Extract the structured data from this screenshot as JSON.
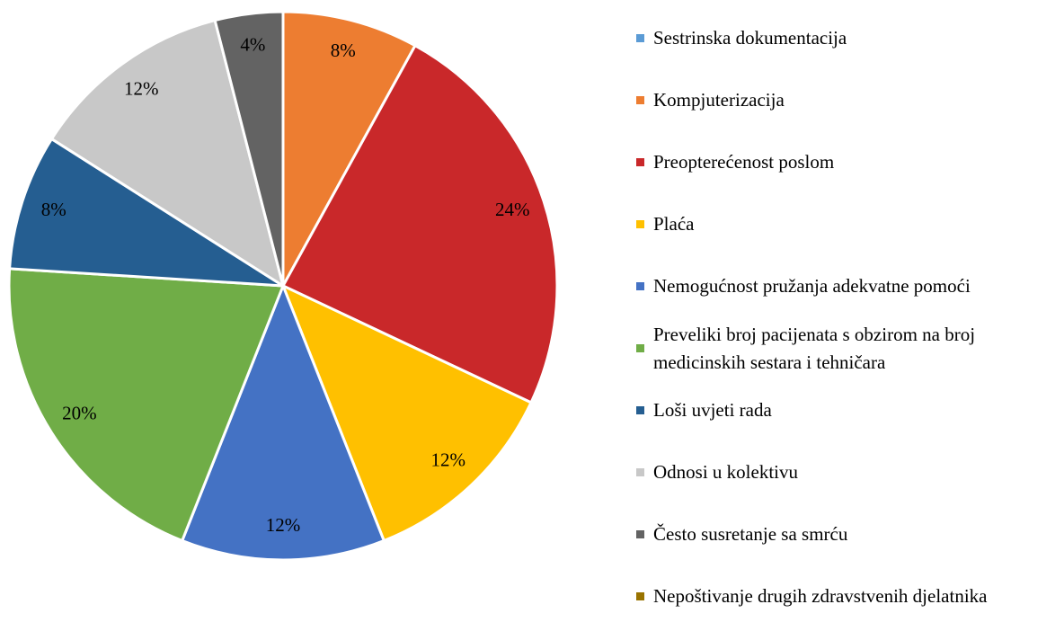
{
  "chart_data": {
    "type": "pie",
    "categories": [
      "Sestrinska dokumentacija",
      "Kompjuterizacija",
      "Preopterećenost poslom",
      "Plaća",
      "Nemogućnost pružanja adekvatne pomoći",
      "Preveliki broj pacijenata s obzirom na broj medicinskih sestara i tehničara",
      "Loši uvjeti rada",
      "Odnosi u kolektivu",
      "Često susretanje sa smrću",
      "Nepoštivanje drugih zdravstvenih djelatnika"
    ],
    "values": [
      0,
      8,
      24,
      12,
      12,
      20,
      8,
      12,
      4,
      0
    ],
    "value_labels": [
      null,
      "8%",
      "24%",
      "12%",
      "12%",
      "20%",
      "8%",
      "12%",
      "4%",
      null
    ],
    "colors": [
      "#5b9bd5",
      "#ed7d31",
      "#c9282a",
      "#ffc000",
      "#4472c4",
      "#70ad47",
      "#255e91",
      "#c8c8c8",
      "#636363",
      "#997300"
    ],
    "legend": "right"
  }
}
